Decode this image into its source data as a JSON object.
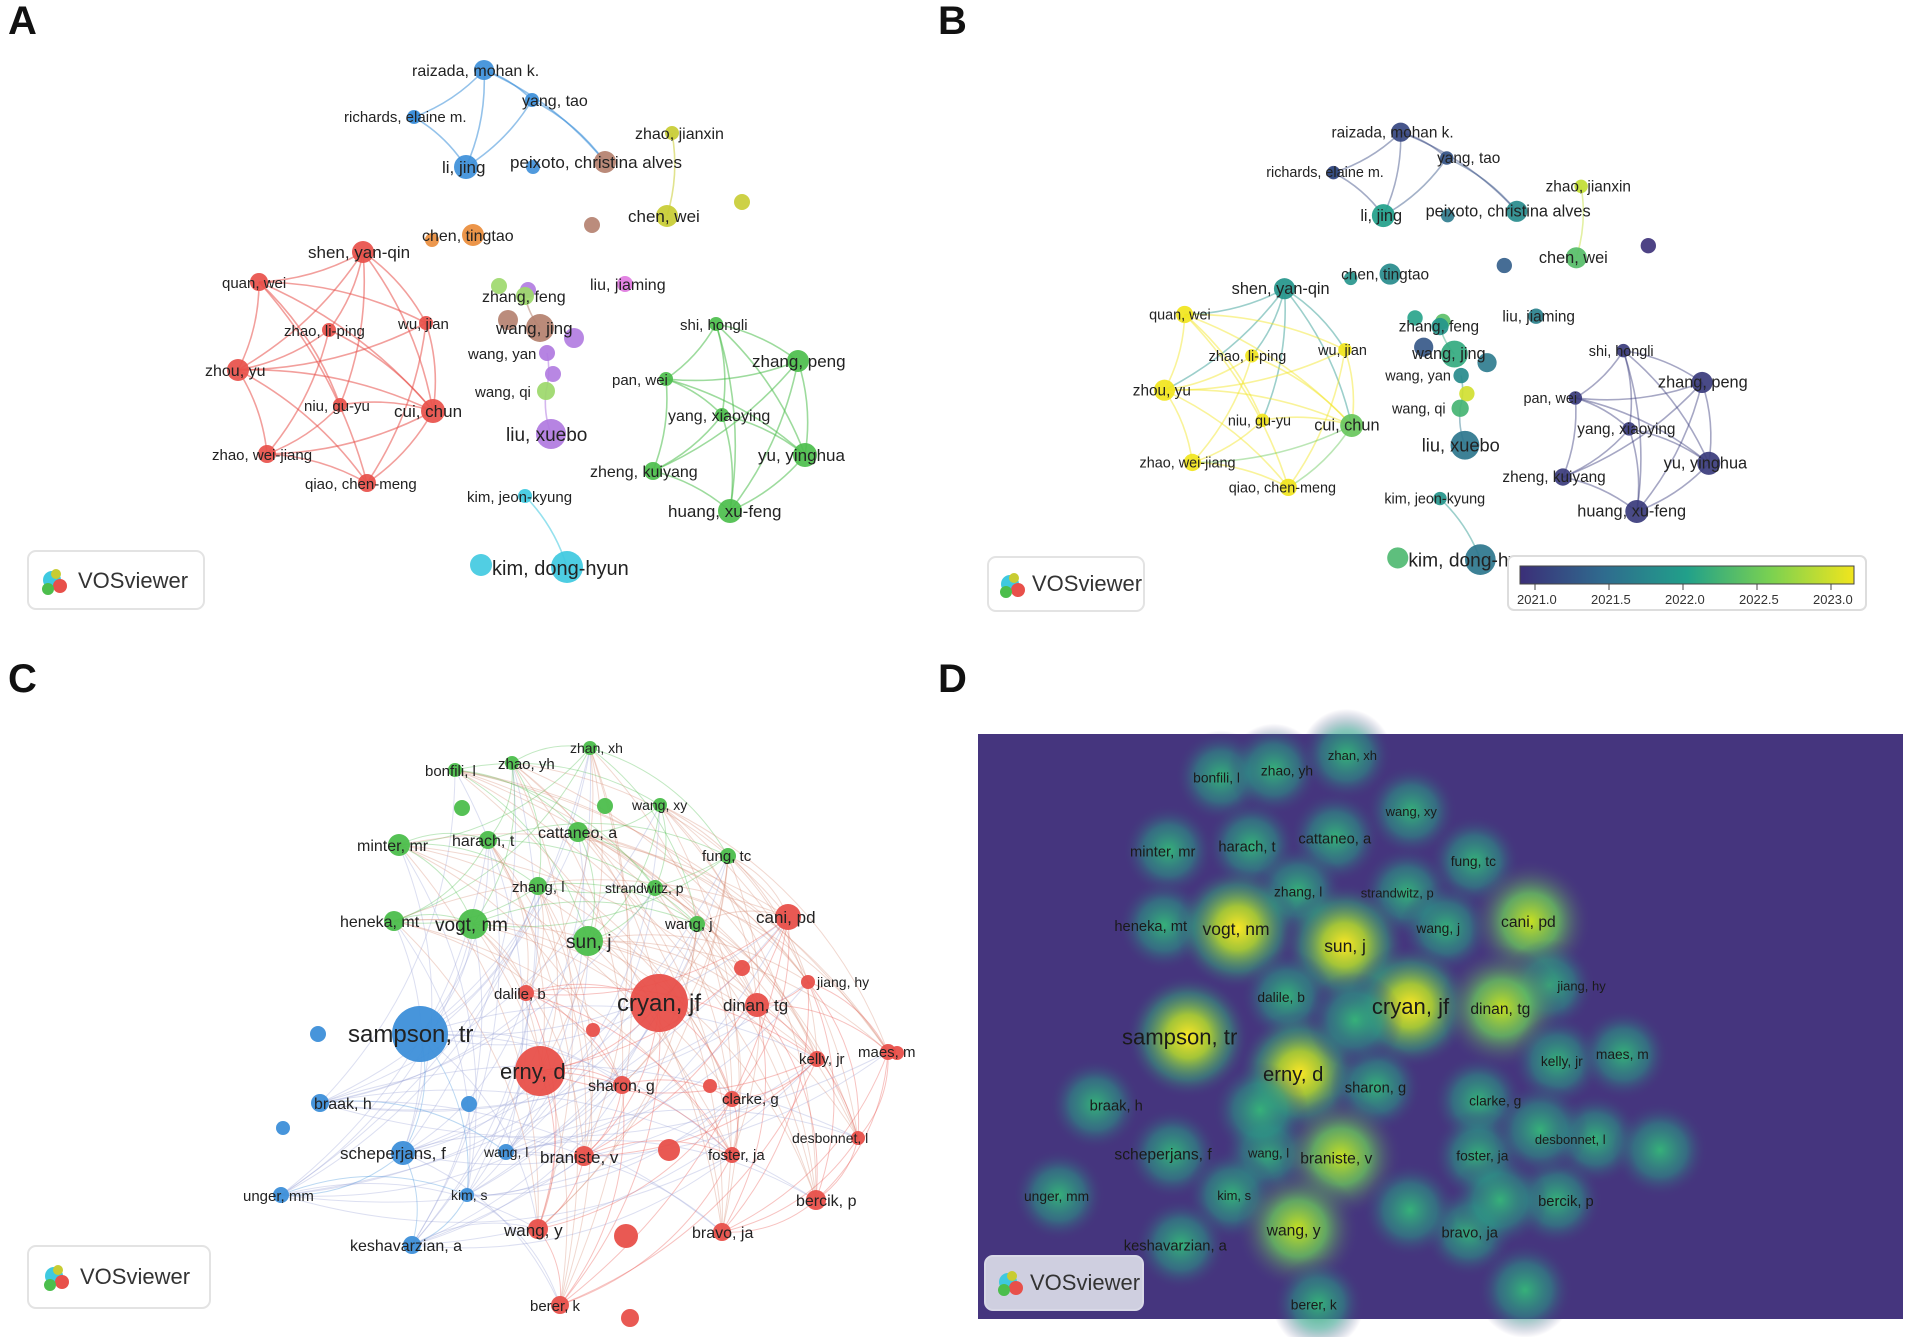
{
  "panels": {
    "A": {
      "letter": "A",
      "brand": "VOSviewer"
    },
    "B": {
      "letter": "B",
      "brand": "VOSviewer",
      "scale_ticks": [
        "2021.0",
        "2021.5",
        "2022.0",
        "2022.5",
        "2023.0"
      ]
    },
    "C": {
      "letter": "C",
      "brand": "VOSviewer"
    },
    "D": {
      "letter": "D",
      "brand": "VOSviewer"
    }
  },
  "colors": {
    "red": "#e8504a",
    "green": "#4cbe4c",
    "blue": "#3d8fd9",
    "yellow": "#c8cc32",
    "orange": "#ea8c3a",
    "cyan": "#3ec9e0",
    "purple": "#b07ae0",
    "brown": "#b4806e",
    "pink": "#e07ae0",
    "lightgreen": "#9cd86a",
    "density_bg": "#45357e"
  },
  "authors_a": [
    {
      "label": "raizada, mohan k.",
      "cluster": "blue",
      "year": 2021.2
    },
    {
      "label": "yang, tao",
      "cluster": "blue",
      "year": 2021.3
    },
    {
      "label": "richards, elaine m.",
      "cluster": "blue",
      "year": 2021.2
    },
    {
      "label": "li, jing",
      "cluster": "blue",
      "year": 2022.0
    },
    {
      "label": "peixoto, christina alves",
      "cluster": "brown",
      "year": 2021.8
    },
    {
      "label": "zhao, jianxin",
      "cluster": "yellow",
      "year": 2022.8
    },
    {
      "label": "chen, wei",
      "cluster": "yellow",
      "year": 2022.3
    },
    {
      "label": "chen, tingtao",
      "cluster": "orange",
      "year": 2021.8
    },
    {
      "label": "shen, yan-qin",
      "cluster": "red",
      "year": 2021.9
    },
    {
      "label": "quan, wei",
      "cluster": "red",
      "year": 2023.0
    },
    {
      "label": "zhao, li-ping",
      "cluster": "red",
      "year": 2023.0
    },
    {
      "label": "wu, jian",
      "cluster": "red",
      "year": 2023.0
    },
    {
      "label": "zhou, yu",
      "cluster": "red",
      "year": 2023.0
    },
    {
      "label": "niu, gu-yu",
      "cluster": "red",
      "year": 2023.0
    },
    {
      "label": "cui, chun",
      "cluster": "red",
      "year": 2022.4
    },
    {
      "label": "zhao, wei-jiang",
      "cluster": "red",
      "year": 2023.0
    },
    {
      "label": "qiao, chen-meng",
      "cluster": "red",
      "year": 2023.0
    },
    {
      "label": "zhang, feng",
      "cluster": "lightgreen",
      "year": 2021.9
    },
    {
      "label": "liu, jiaming",
      "cluster": "pink",
      "year": 2021.7
    },
    {
      "label": "wang, jing",
      "cluster": "brown",
      "year": 2022.1
    },
    {
      "label": "wang, yan",
      "cluster": "purple",
      "year": 2021.8
    },
    {
      "label": "wang, qi",
      "cluster": "lightgreen",
      "year": 2022.2
    },
    {
      "label": "liu, xuebo",
      "cluster": "purple",
      "year": 2021.6
    },
    {
      "label": "shi, hongli",
      "cluster": "green",
      "year": 2021.1
    },
    {
      "label": "zhang, peng",
      "cluster": "green",
      "year": 2021.1
    },
    {
      "label": "pan, wei",
      "cluster": "green",
      "year": 2021.1
    },
    {
      "label": "yang, xiaoying",
      "cluster": "green",
      "year": 2021.1
    },
    {
      "label": "yu, yinghua",
      "cluster": "green",
      "year": 2021.1
    },
    {
      "label": "zheng, kuiyang",
      "cluster": "green",
      "year": 2021.1
    },
    {
      "label": "huang, xu-feng",
      "cluster": "green",
      "year": 2021.1
    },
    {
      "label": "kim, jeon-kyung",
      "cluster": "cyan",
      "year": 2021.9
    },
    {
      "label": "kim, dong-hyun",
      "cluster": "cyan",
      "year": 2021.6
    }
  ],
  "authors_c": [
    {
      "label": "bonfili, l",
      "cluster": "green"
    },
    {
      "label": "zhao, yh",
      "cluster": "green"
    },
    {
      "label": "zhan, xh",
      "cluster": "green"
    },
    {
      "label": "wang, xy",
      "cluster": "green"
    },
    {
      "label": "minter, mr",
      "cluster": "green"
    },
    {
      "label": "harach, t",
      "cluster": "green"
    },
    {
      "label": "cattaneo, a",
      "cluster": "green"
    },
    {
      "label": "fung, tc",
      "cluster": "green"
    },
    {
      "label": "zhang, l",
      "cluster": "green"
    },
    {
      "label": "strandwitz, p",
      "cluster": "green"
    },
    {
      "label": "heneka, mt",
      "cluster": "green"
    },
    {
      "label": "vogt, nm",
      "cluster": "green"
    },
    {
      "label": "sun, j",
      "cluster": "green"
    },
    {
      "label": "wang, j",
      "cluster": "green"
    },
    {
      "label": "cani, pd",
      "cluster": "red"
    },
    {
      "label": "jiang, hy",
      "cluster": "red"
    },
    {
      "label": "dalile, b",
      "cluster": "red"
    },
    {
      "label": "cryan, jf",
      "cluster": "red"
    },
    {
      "label": "dinan, tg",
      "cluster": "red"
    },
    {
      "label": "sampson, tr",
      "cluster": "blue"
    },
    {
      "label": "kelly, jr",
      "cluster": "red"
    },
    {
      "label": "maes, m",
      "cluster": "red"
    },
    {
      "label": "erny, d",
      "cluster": "red"
    },
    {
      "label": "sharon, g",
      "cluster": "red"
    },
    {
      "label": "braak, h",
      "cluster": "blue"
    },
    {
      "label": "clarke, g",
      "cluster": "red"
    },
    {
      "label": "scheperjans, f",
      "cluster": "blue"
    },
    {
      "label": "wang, l",
      "cluster": "blue"
    },
    {
      "label": "braniste, v",
      "cluster": "red"
    },
    {
      "label": "foster, ja",
      "cluster": "red"
    },
    {
      "label": "desbonnet, l",
      "cluster": "red"
    },
    {
      "label": "unger, mm",
      "cluster": "blue"
    },
    {
      "label": "kim, s",
      "cluster": "blue"
    },
    {
      "label": "bercik, p",
      "cluster": "red"
    },
    {
      "label": "keshavarzian, a",
      "cluster": "blue"
    },
    {
      "label": "wang, y",
      "cluster": "red"
    },
    {
      "label": "bravo, ja",
      "cluster": "red"
    },
    {
      "label": "berer, k",
      "cluster": "red"
    }
  ]
}
